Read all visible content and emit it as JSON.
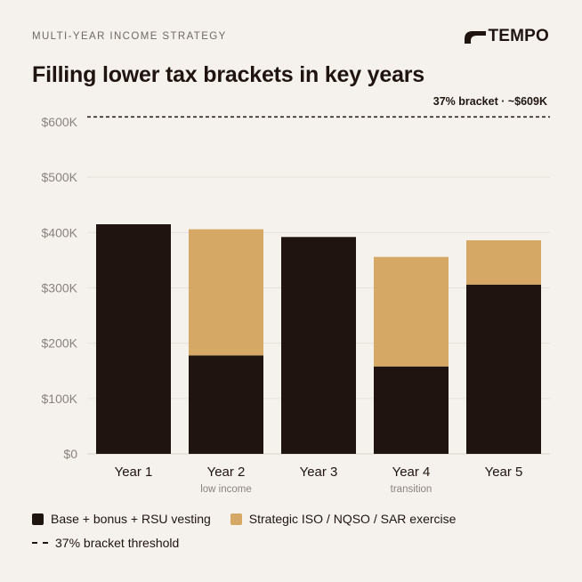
{
  "header": {
    "eyebrow": "MULTI-YEAR INCOME STRATEGY",
    "brand": "TEMPO",
    "brand_icon": "tempo-logo-icon",
    "title": "Filling lower tax brackets in key years"
  },
  "colors": {
    "background": "#f5f2ed",
    "base": "#1f1410",
    "strategic": "#d5a865",
    "grid": "#e6e1da"
  },
  "chart_data": {
    "type": "bar",
    "stacked": true,
    "title": "Filling lower tax brackets in key years",
    "categories": [
      "Year 1",
      "Year 2",
      "Year 3",
      "Year 4",
      "Year 5"
    ],
    "category_sublabels": [
      "",
      "low income",
      "",
      "transition",
      ""
    ],
    "series": [
      {
        "name": "Base + bonus + RSU vesting",
        "values": [
          415,
          178,
          392,
          158,
          306
        ]
      },
      {
        "name": "Strategic ISO / NQSO / SAR exercise",
        "values": [
          0,
          228,
          0,
          198,
          80
        ]
      }
    ],
    "y_ticks": [
      "$0",
      "$100K",
      "$200K",
      "$300K",
      "$400K",
      "$500K",
      "$600K"
    ],
    "ylim": [
      0,
      600
    ],
    "units": "thousands USD",
    "threshold": {
      "name": "37% bracket threshold",
      "value": 609,
      "label": "37% bracket · ~$609K"
    },
    "grid": true,
    "legend_position": "bottom"
  },
  "legend": {
    "base": "Base + bonus + RSU vesting",
    "strategic": "Strategic ISO / NQSO / SAR exercise",
    "threshold": "37% bracket threshold"
  }
}
